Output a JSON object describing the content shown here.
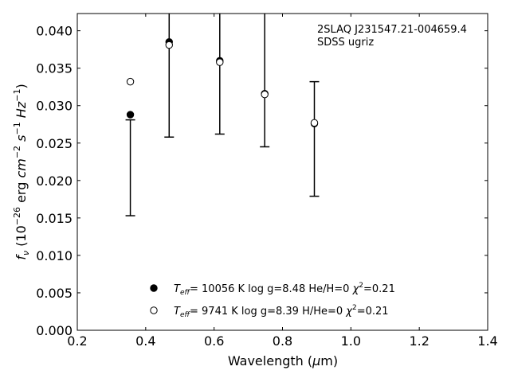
{
  "chart_data": {
    "type": "scatter",
    "title": "",
    "xlabel": "Wavelength (μm)",
    "ylabel": "fν (10⁻²⁶ erg cm⁻² s⁻¹ Hz⁻¹)",
    "xlim": [
      0.2,
      1.4
    ],
    "ylim": [
      0.0,
      0.0423
    ],
    "x_ticks": [
      0.2,
      0.4,
      0.6,
      0.8,
      1.0,
      1.2,
      1.4
    ],
    "x_tick_labels": [
      "0.2",
      "0.4",
      "0.6",
      "0.8",
      "1.0",
      "1.2",
      "1.4"
    ],
    "y_ticks": [
      0.0,
      0.005,
      0.01,
      0.015,
      0.02,
      0.025,
      0.03,
      0.035,
      0.04
    ],
    "y_tick_labels": [
      "0.000",
      "0.005",
      "0.010",
      "0.015",
      "0.020",
      "0.025",
      "0.030",
      "0.035",
      "0.040"
    ],
    "grid": false,
    "legend_position": "bottom-center",
    "annotation": {
      "object": "2SLAQ J231547.21-004659.4",
      "survey": "SDSS ugriz"
    },
    "observed": {
      "name": "",
      "x": [
        0.3551,
        0.4686,
        0.6166,
        0.748,
        0.8932
      ],
      "y": [
        0.0288,
        0.0385,
        0.0359,
        0.0315,
        0.0274
      ],
      "err_low": [
        0.0153,
        0.0258,
        0.0262,
        0.0245,
        0.0179
      ],
      "err_high": [
        0.0281,
        0.0423,
        0.0423,
        0.0423,
        0.0332
      ]
    },
    "series": [
      {
        "name": "Teff= 10056 K  log g=8.48  He/H=0  χ²=0.21",
        "marker": "filled-circle",
        "x": [
          0.3551,
          0.4686,
          0.6166,
          0.748,
          0.8932
        ],
        "y": [
          0.0288,
          0.0385,
          0.036,
          0.0316,
          0.0276
        ]
      },
      {
        "name": "Teff=  9741 K  log g=8.39  H/He=0  χ²=0.21",
        "marker": "open-circle",
        "x": [
          0.3551,
          0.4686,
          0.6166,
          0.748,
          0.8932
        ],
        "y": [
          0.0332,
          0.0381,
          0.0358,
          0.0315,
          0.0277
        ]
      }
    ],
    "legend": [
      {
        "marker": "filled-circle",
        "teff_sub": "eff",
        "teff_value": "= 10056 K",
        "logg": "log g=8.48",
        "comp": "He/H=0",
        "chi": "=0.21"
      },
      {
        "marker": "open-circle",
        "teff_sub": "eff",
        "teff_value": "=  9741 K",
        "logg": "log g=8.39",
        "comp": "H/He=0",
        "chi": "=0.21"
      }
    ],
    "colors": {
      "marker": "#000000",
      "axes": "#000000",
      "background": "#ffffff"
    }
  }
}
